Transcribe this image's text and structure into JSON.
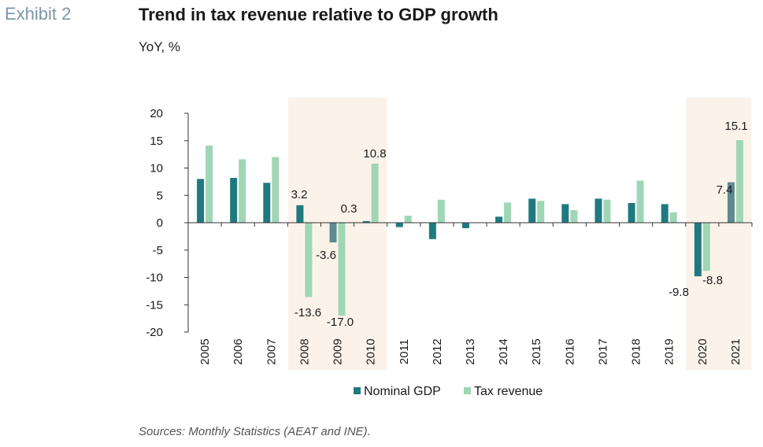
{
  "header": {
    "exhibit": "Exhibit 2",
    "title": "Trend in tax revenue relative to GDP growth",
    "subtitle": "YoY, %"
  },
  "source": "Sources: Monthly Statistics (AEAT and INE).",
  "colors": {
    "nominal_gdp": "#1f7a80",
    "nominal_gdp_highlight": "#5e8a90",
    "tax_revenue": "#9fd6b5",
    "shade": "#fbf3ea"
  },
  "chart_data": {
    "type": "bar",
    "categories": [
      "2005",
      "2006",
      "2007",
      "2008",
      "2009",
      "2010",
      "2011",
      "2012",
      "2013",
      "2014",
      "2015",
      "2016",
      "2017",
      "2018",
      "2019",
      "2020",
      "2021"
    ],
    "series": [
      {
        "name": "Nominal GDP",
        "values": [
          8.0,
          8.2,
          7.3,
          3.2,
          -3.6,
          0.3,
          -0.8,
          -3.0,
          -1.0,
          1.1,
          4.4,
          3.4,
          4.4,
          3.6,
          3.4,
          -9.8,
          7.4
        ]
      },
      {
        "name": "Tax revenue",
        "values": [
          14.1,
          11.6,
          12.0,
          -13.6,
          -17.0,
          10.8,
          1.3,
          4.2,
          0.0,
          3.7,
          4.0,
          2.3,
          4.2,
          7.7,
          1.9,
          -8.8,
          15.1
        ]
      }
    ],
    "data_labels": [
      {
        "category": "2008",
        "series": 0,
        "text": "3.2"
      },
      {
        "category": "2008",
        "series": 1,
        "text": "-13.6"
      },
      {
        "category": "2009",
        "series": 0,
        "text": "-3.6"
      },
      {
        "category": "2009",
        "series": 1,
        "text": "-17.0"
      },
      {
        "category": "2010",
        "series": 0,
        "text": "0.3"
      },
      {
        "category": "2010",
        "series": 1,
        "text": "10.8"
      },
      {
        "category": "2020",
        "series": 0,
        "text": "-9.8"
      },
      {
        "category": "2020",
        "series": 1,
        "text": "-8.8"
      },
      {
        "category": "2021",
        "series": 0,
        "text": "7.4"
      },
      {
        "category": "2021",
        "series": 1,
        "text": "15.1"
      }
    ],
    "highlighted_periods": [
      [
        "2008",
        "2010"
      ],
      [
        "2020",
        "2021"
      ]
    ],
    "yticks": [
      20,
      15,
      10,
      5,
      0,
      -5,
      -10,
      -15,
      -20
    ],
    "ylim": [
      -20,
      20
    ],
    "grid": false,
    "legend": "bottom-center"
  }
}
